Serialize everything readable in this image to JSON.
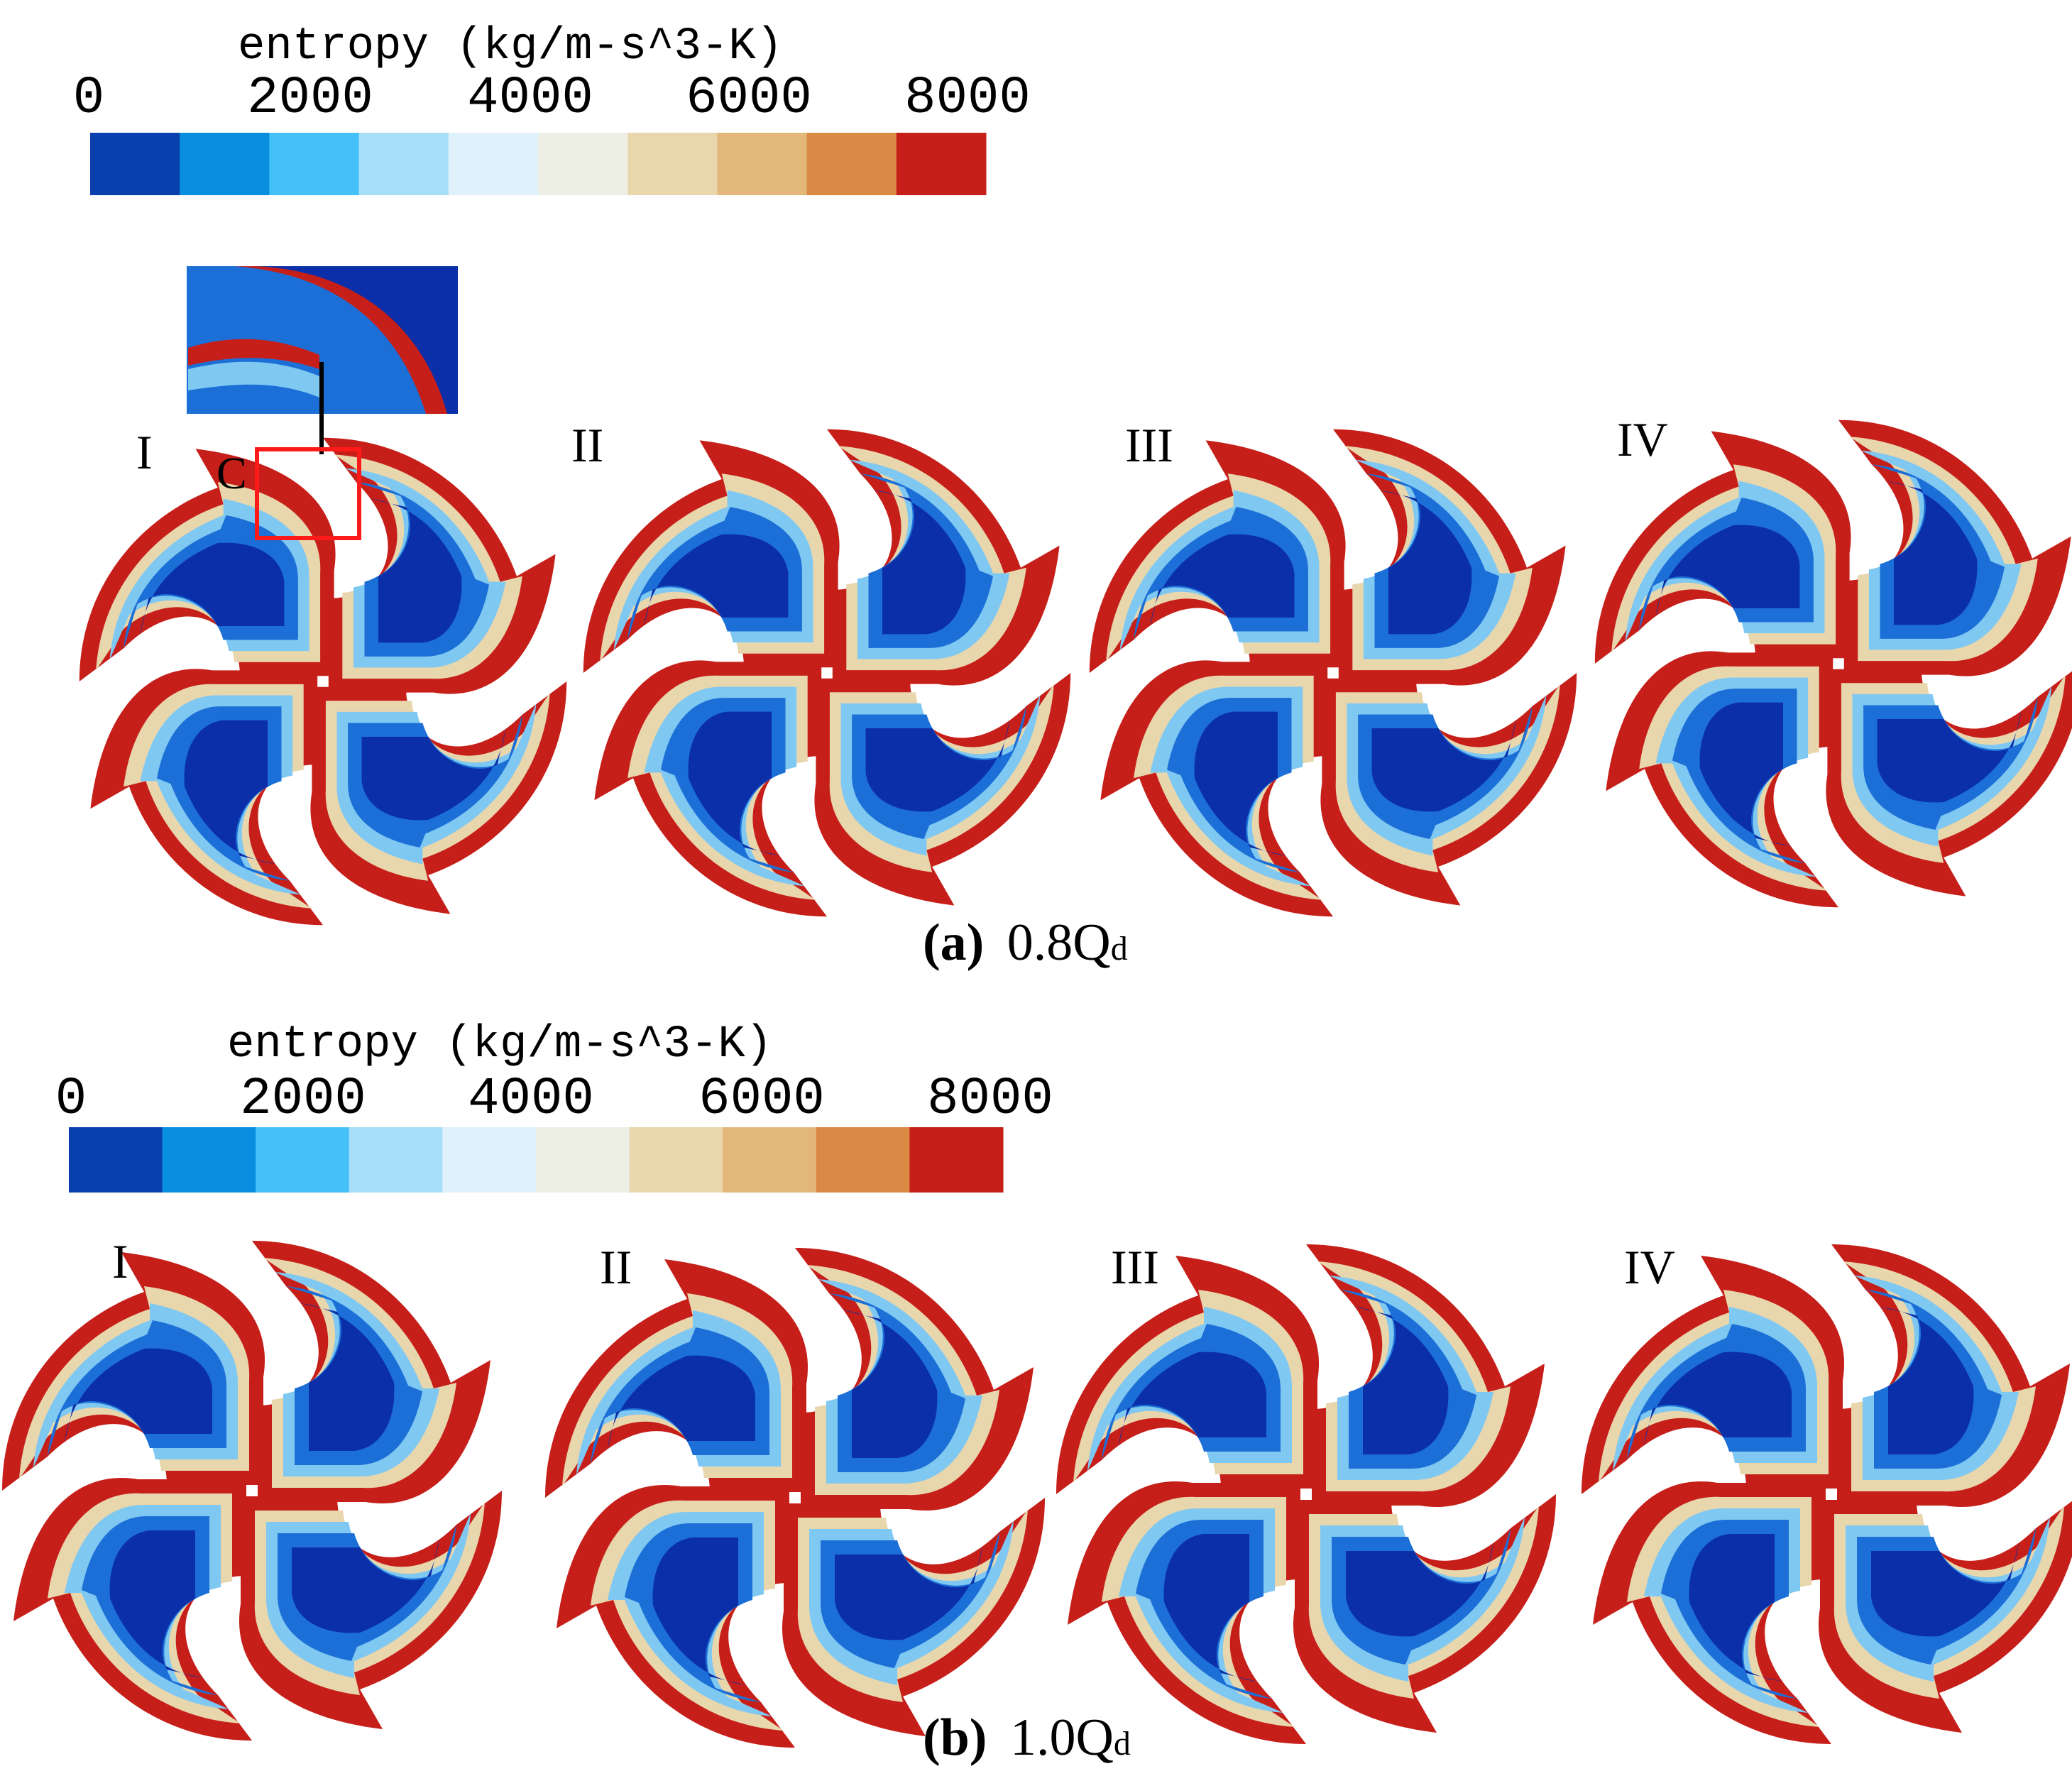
{
  "panels": [
    {
      "id": "a",
      "legend": {
        "title": "entropy  (kg/m-s^3-K)",
        "ticks": [
          "0",
          "2000",
          "4000",
          "6000",
          "8000"
        ]
      },
      "case_labels": [
        "I",
        "II",
        "III",
        "IV"
      ],
      "callout_label": "C",
      "caption": {
        "letter": "(a)",
        "value": "0.8Q",
        "subscript": "d"
      }
    },
    {
      "id": "b",
      "legend": {
        "title": "entropy  (kg/m-s^3-K)",
        "ticks": [
          "0",
          "2000",
          "4000",
          "6000",
          "8000"
        ]
      },
      "case_labels": [
        "I",
        "II",
        "III",
        "IV"
      ],
      "caption": {
        "letter": "(b)",
        "value": "1.0Q",
        "subscript": "d"
      }
    }
  ],
  "colormap": [
    "#0a3fae",
    "#0a8ee0",
    "#44c1f8",
    "#a8dff8",
    "#dff1fb",
    "#eeefe4",
    "#e8d6ad",
    "#e3b77a",
    "#d98a44",
    "#c61f1a"
  ],
  "colors": {
    "blade_core": "#0b2fa8",
    "blade_mid": "#1c6fd6",
    "blade_light": "#7fc8f2",
    "blade_edge_red": "#c61f1a",
    "highlight_box": "#ff1a1a"
  }
}
